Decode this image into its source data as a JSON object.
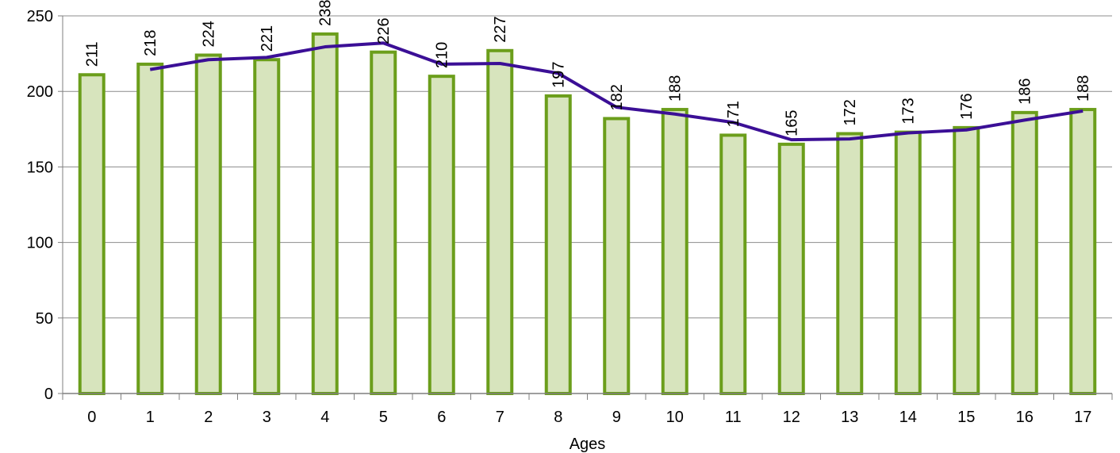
{
  "chart_data": {
    "type": "bar",
    "title": "",
    "xlabel": "Ages",
    "ylabel": "",
    "ylim": [
      0,
      250
    ],
    "yticks": [
      0,
      50,
      100,
      150,
      200,
      250
    ],
    "categories": [
      "0",
      "1",
      "2",
      "3",
      "4",
      "5",
      "6",
      "7",
      "8",
      "9",
      "10",
      "11",
      "12",
      "13",
      "14",
      "15",
      "16",
      "17"
    ],
    "series": [
      {
        "type": "bar",
        "values": [
          211,
          218,
          224,
          221,
          238,
          226,
          210,
          227,
          197,
          182,
          188,
          171,
          165,
          172,
          173,
          176,
          186,
          188
        ],
        "data_labels": [
          "211",
          "218",
          "224",
          "221",
          "238",
          "226",
          "210",
          "227",
          "197",
          "182",
          "188",
          "171",
          "165",
          "172",
          "173",
          "176",
          "186",
          "188"
        ]
      },
      {
        "type": "line",
        "trendline": "2-period moving average",
        "start_index": 1,
        "values": [
          null,
          214.5,
          221,
          222.5,
          229.5,
          232,
          218,
          218.5,
          212,
          189.5,
          185,
          179.5,
          168,
          168.5,
          172.5,
          174.5,
          181,
          187
        ]
      }
    ],
    "grid": true,
    "legend": "none",
    "colors": {
      "bar_fill": "#d7e4bd",
      "bar_stroke": "#6b9e1b",
      "line": "#3b0f96",
      "grid": "#8c8c8c",
      "axis": "#7f7f7f"
    }
  }
}
